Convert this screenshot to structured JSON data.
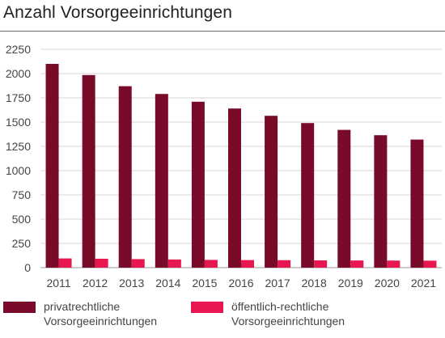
{
  "chart_data": {
    "type": "bar",
    "title": "Anzahl Vorsorgeeinrichtungen",
    "categories": [
      "2011",
      "2012",
      "2013",
      "2014",
      "2015",
      "2016",
      "2017",
      "2018",
      "2019",
      "2020",
      "2021"
    ],
    "series": [
      {
        "name": "privatrechtliche Vorsorgeeinrichtungen",
        "color": "#7a0a2a",
        "values": [
          2100,
          1985,
          1870,
          1790,
          1710,
          1640,
          1565,
          1490,
          1420,
          1365,
          1320
        ]
      },
      {
        "name": "öffentlich-rechtliche Vorsorgeeinrichtungen",
        "color": "#e8174f",
        "values": [
          95,
          92,
          88,
          84,
          80,
          78,
          77,
          75,
          74,
          73,
          72
        ]
      }
    ],
    "ylim": [
      0,
      2250
    ],
    "yticks": [
      0,
      250,
      500,
      750,
      1000,
      1250,
      1500,
      1750,
      2000,
      2250
    ],
    "grid": true,
    "legend_position": "bottom"
  }
}
